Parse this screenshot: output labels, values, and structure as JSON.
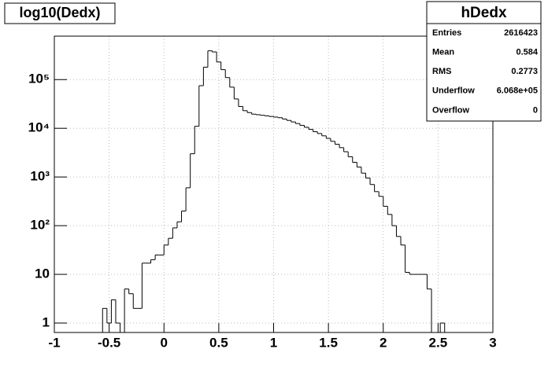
{
  "chart_data": {
    "type": "histogram",
    "title": "log10(Dedx)",
    "bins": [
      -1,
      -0.96,
      -0.92,
      -0.88,
      -0.84,
      -0.8,
      -0.76,
      -0.72,
      -0.68,
      -0.64,
      -0.6,
      -0.56,
      -0.52,
      -0.48,
      -0.44,
      -0.4,
      -0.36,
      -0.32,
      -0.28,
      -0.24,
      -0.2,
      -0.16,
      -0.12,
      -0.08,
      -0.04,
      0,
      0.04,
      0.08,
      0.12,
      0.16,
      0.2,
      0.24,
      0.28,
      0.32,
      0.36,
      0.4,
      0.44,
      0.48,
      0.52,
      0.56,
      0.6,
      0.64,
      0.68,
      0.72,
      0.76,
      0.8,
      0.84,
      0.88,
      0.92,
      0.96,
      1,
      1.04,
      1.08,
      1.12,
      1.16,
      1.2,
      1.24,
      1.28,
      1.32,
      1.36,
      1.4,
      1.44,
      1.48,
      1.52,
      1.56,
      1.6,
      1.64,
      1.68,
      1.72,
      1.76,
      1.8,
      1.84,
      1.88,
      1.92,
      1.96,
      2,
      2.04,
      2.08,
      2.12,
      2.16,
      2.2,
      2.24,
      2.28,
      2.32,
      2.36,
      2.4,
      2.44,
      2.48,
      2.52,
      2.56,
      2.6,
      2.64,
      2.68,
      2.72,
      2.76,
      2.8,
      2.84,
      2.88,
      2.92,
      2.96,
      3
    ],
    "values": [
      0,
      0,
      0,
      0,
      0,
      0,
      0,
      0,
      0,
      0,
      0,
      2,
      1,
      3,
      1,
      0,
      5,
      4,
      2,
      2,
      17,
      17,
      20,
      25,
      25,
      40,
      55,
      90,
      120,
      200,
      600,
      3000,
      11000,
      75000,
      180000,
      390000,
      370000,
      230000,
      160000,
      110000,
      70000,
      40000,
      28000,
      23000,
      21000,
      19500,
      19000,
      18500,
      18000,
      17500,
      17000,
      16500,
      15500,
      14500,
      13500,
      12500,
      11500,
      10500,
      9500,
      8500,
      7800,
      7000,
      6200,
      5400,
      4700,
      4000,
      3300,
      2600,
      2000,
      1600,
      1200,
      950,
      700,
      500,
      400,
      250,
      170,
      100,
      60,
      40,
      11,
      10,
      10,
      10,
      10,
      5,
      0,
      0,
      1,
      0,
      0,
      0,
      0,
      0,
      0,
      0,
      0,
      0,
      0,
      0
    ],
    "color": "#000000",
    "xlim": [
      -1,
      3
    ],
    "xticks": [
      -1,
      -0.5,
      0,
      0.5,
      1,
      1.5,
      2,
      2.5,
      3
    ],
    "ylim": [
      0.64,
      780000
    ],
    "yticks": [
      1,
      10,
      {
        "value": 100,
        "label": "10²"
      },
      {
        "value": 1000,
        "label": "10³"
      },
      {
        "value": 10000,
        "label": "10⁴"
      },
      {
        "value": 100000,
        "label": "10⁵"
      }
    ],
    "log_y": true,
    "grid": true,
    "stats": {
      "title": "hDedx",
      "rows": [
        {
          "label": "Entries",
          "value": 2616423
        },
        {
          "label": "Mean",
          "value": 0.584
        },
        {
          "label": "RMS",
          "value": 0.2773
        },
        {
          "label": "Underflow",
          "value": {
            "value": 606800,
            "label": "6.068e+05"
          }
        },
        {
          "label": "Overflow",
          "value": 0
        }
      ]
    }
  }
}
